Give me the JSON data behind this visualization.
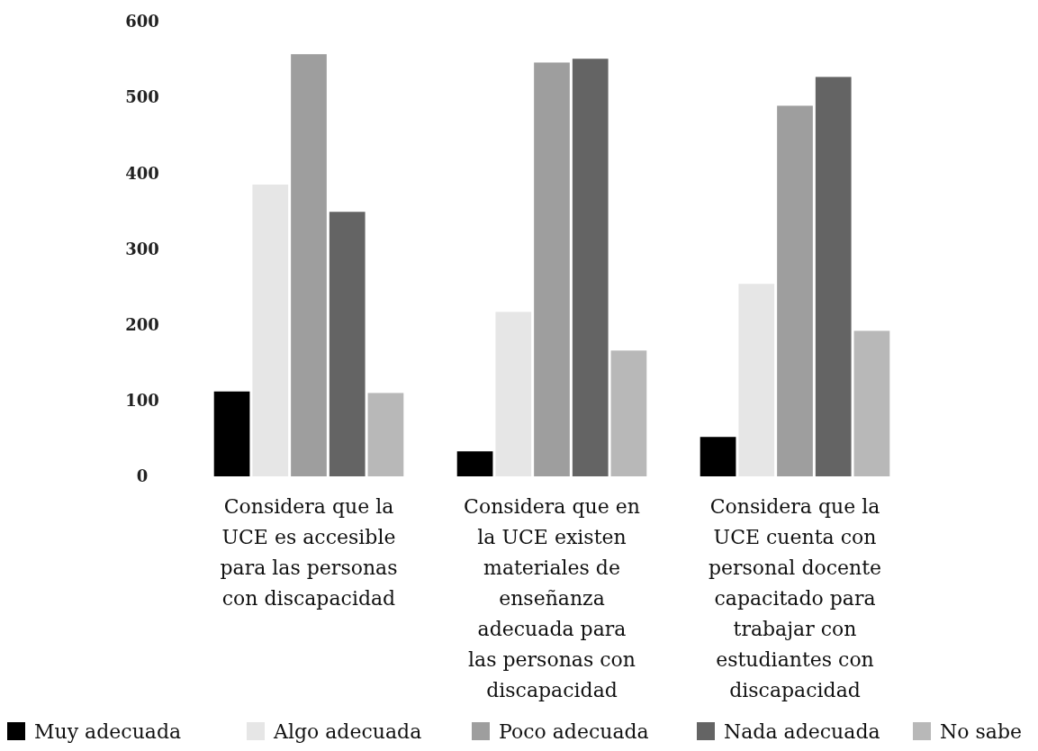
{
  "chart_data": {
    "type": "bar",
    "categories": [
      "Considera que la UCE es accesible para las personas con discapacidad",
      "Considera que en la UCE existen materiales de enseñanza adecuada para las personas con discapacidad",
      "Considera que la UCE cuenta con personal docente capacitado para trabajar con estudiantes con discapacidad"
    ],
    "series": [
      {
        "name": "Muy adecuada",
        "color": "#000000",
        "values": [
          112,
          33,
          52
        ]
      },
      {
        "name": "Algo adecuada",
        "color": "#e6e6e6",
        "values": [
          385,
          217,
          254
        ]
      },
      {
        "name": "Poco adecuada",
        "color": "#9e9e9e",
        "values": [
          557,
          546,
          489
        ]
      },
      {
        "name": "Nada adecuada",
        "color": "#646464",
        "values": [
          349,
          551,
          527
        ]
      },
      {
        "name": "No sabe",
        "color": "#b8b8b8",
        "values": [
          110,
          166,
          192
        ]
      }
    ],
    "ylim": [
      0,
      600
    ],
    "yticks": [
      0,
      100,
      200,
      300,
      400,
      500,
      600
    ],
    "grid": false,
    "legend": "bottom"
  }
}
